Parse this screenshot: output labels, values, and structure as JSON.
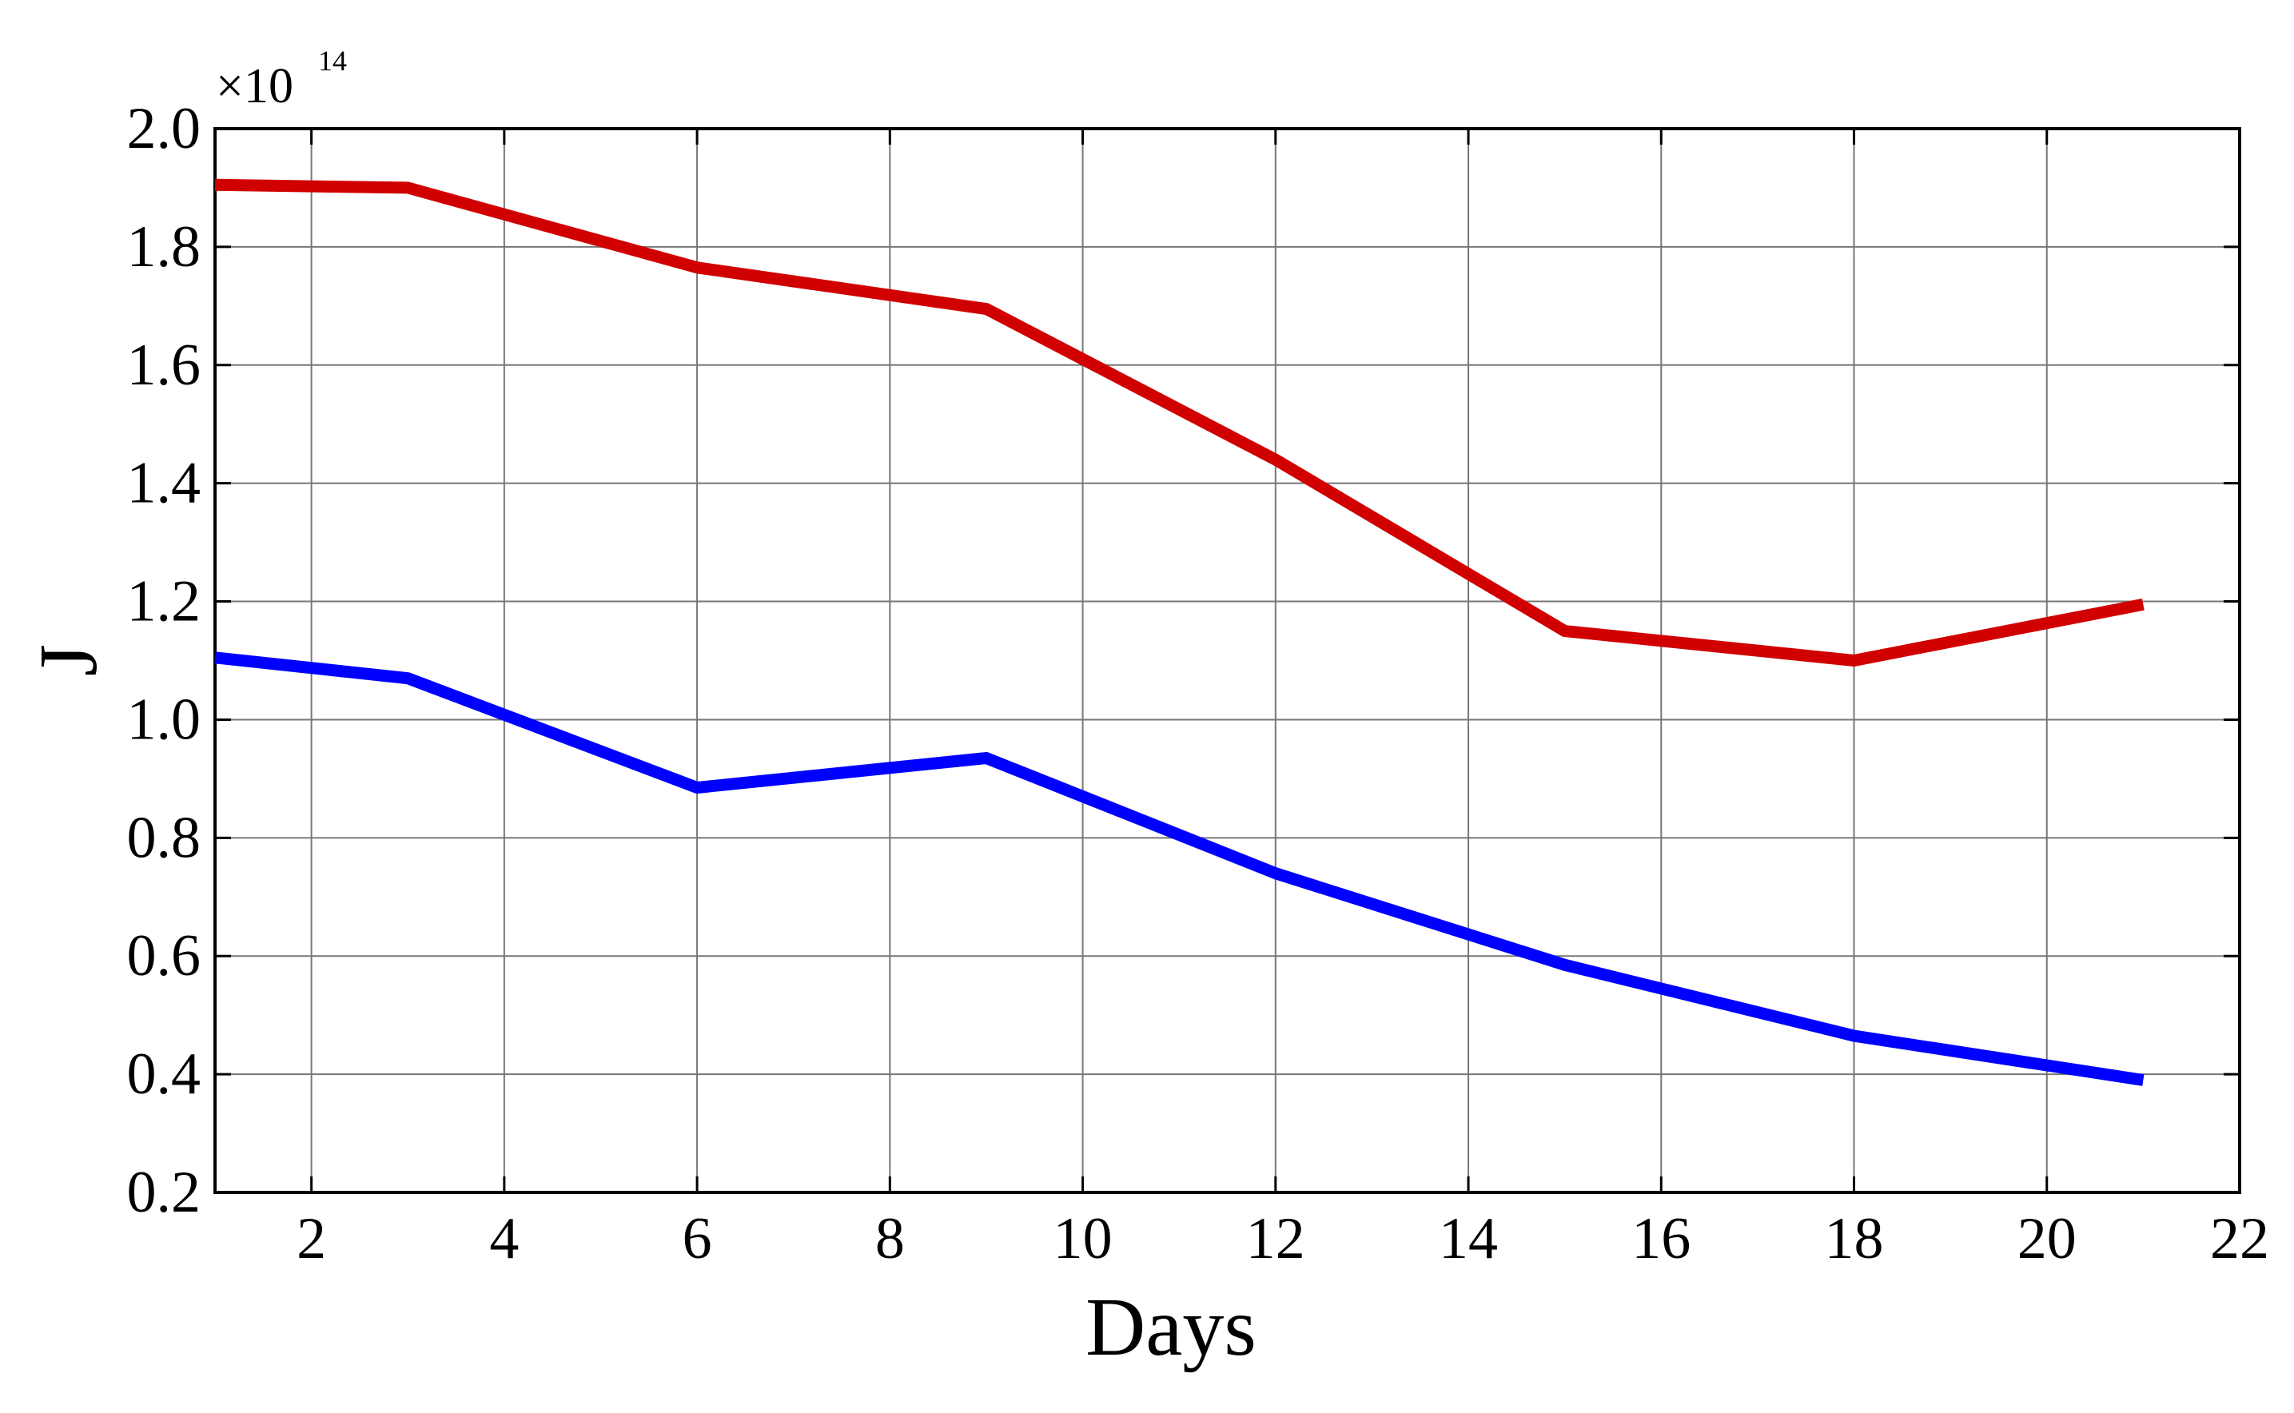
{
  "chart_data": {
    "type": "line",
    "x_label": "Days",
    "y_label": "J",
    "y_multiplier": {
      "base": "×10",
      "exponent": "14"
    },
    "x": [
      1,
      3,
      6,
      9,
      12,
      15,
      18,
      21
    ],
    "series": [
      {
        "color": "#d10000",
        "values": [
          1.905,
          1.9,
          1.765,
          1.695,
          1.44,
          1.15,
          1.1,
          1.195
        ]
      },
      {
        "color": "#0000ff",
        "values": [
          1.105,
          1.07,
          0.885,
          0.935,
          0.74,
          0.585,
          0.465,
          0.39
        ]
      }
    ],
    "xlim": [
      1,
      22
    ],
    "ylim": [
      0.2,
      2.0
    ],
    "xticks": [
      2,
      4,
      6,
      8,
      10,
      12,
      14,
      16,
      18,
      20,
      22
    ],
    "yticks": [
      {
        "value": 0.2,
        "label": "0.2"
      },
      {
        "value": 0.4,
        "label": "0.4"
      },
      {
        "value": 0.6,
        "label": "0.6"
      },
      {
        "value": 0.8,
        "label": "0.8"
      },
      {
        "value": 1.0,
        "label": "1.0"
      },
      {
        "value": 1.2,
        "label": "1.2"
      },
      {
        "value": 1.4,
        "label": "1.4"
      },
      {
        "value": 1.6,
        "label": "1.6"
      },
      {
        "value": 1.8,
        "label": "1.8"
      },
      {
        "value": 2.0,
        "label": "2.0"
      }
    ],
    "grid": true
  }
}
